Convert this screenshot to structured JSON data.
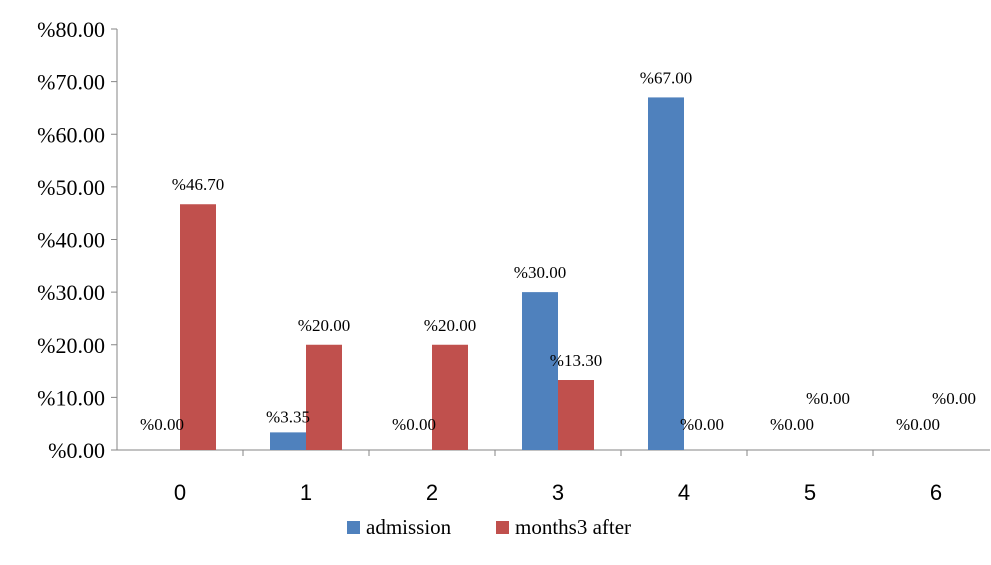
{
  "chart_data": {
    "type": "bar",
    "categories": [
      "0",
      "1",
      "2",
      "3",
      "4",
      "5",
      "6"
    ],
    "series": [
      {
        "name": "admission",
        "color": "#4F81BD",
        "values": [
          0,
          3.35,
          0,
          30,
          67,
          0,
          0
        ],
        "labels": [
          "%0.00",
          "%3.35",
          "%0.00",
          "%30.00",
          "%67.00",
          "%0.00",
          "%0.00"
        ]
      },
      {
        "name": "months3 after",
        "color": "#C0504D",
        "values": [
          46.7,
          20,
          20,
          13.3,
          0,
          0,
          0
        ],
        "labels": [
          "%46.70",
          "%20.00",
          "%20.00",
          "%13.30",
          "%0.00",
          "%0.00",
          "%0.00"
        ]
      }
    ],
    "ylim": [
      0,
      80
    ],
    "y_ticks": [
      0,
      10,
      20,
      30,
      40,
      50,
      60,
      70,
      80
    ],
    "y_tick_labels": [
      "%0.00",
      "%10.00",
      "%20.00",
      "%30.00",
      "%40.00",
      "%50.00",
      "%60.00",
      "%70.00",
      "%80.00"
    ],
    "title": "",
    "xlabel": "",
    "ylabel": "",
    "grid": false,
    "legend": "bottom"
  }
}
